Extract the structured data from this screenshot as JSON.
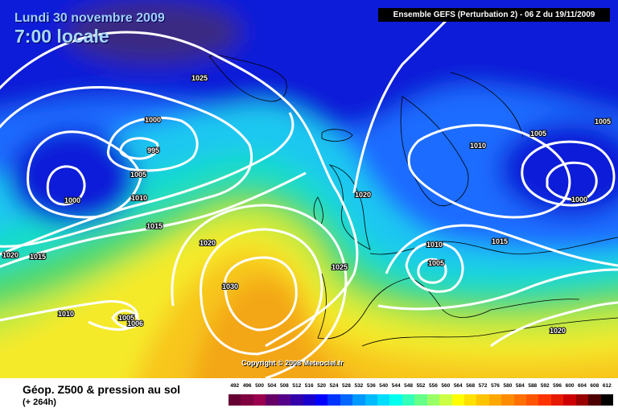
{
  "header": {
    "date_text": "Lundi 30 novembre 2009",
    "time_text": "7:00 locale",
    "model_text": "Ensemble GEFS (Perturbation 2)  -  06 Z du 19/11/2009"
  },
  "copyright": "Copyright © 2008 Meteociel.fr",
  "legend": {
    "title": "Géop. Z500 & pression au sol",
    "subtitle": "(+ 264h)"
  },
  "isobar_labels": [
    "1025",
    "1000",
    "995",
    "1005",
    "1000",
    "1010",
    "1015",
    "1020",
    "1015",
    "1020",
    "1030",
    "1010",
    "1005",
    "1006",
    "1020",
    "1025",
    "1010",
    "1005",
    "1015",
    "1020",
    "1010",
    "1005",
    "1000",
    "1005"
  ],
  "scale": {
    "values": [
      "492",
      "496",
      "500",
      "504",
      "508",
      "512",
      "516",
      "520",
      "524",
      "528",
      "532",
      "536",
      "540",
      "544",
      "548",
      "552",
      "556",
      "560",
      "564",
      "568",
      "572",
      "576",
      "580",
      "584",
      "588",
      "592",
      "596",
      "600",
      "604",
      "608",
      "612"
    ],
    "colors": [
      "#660033",
      "#800040",
      "#99004d",
      "#660066",
      "#550088",
      "#3300aa",
      "#1a00cc",
      "#0000ff",
      "#0033ff",
      "#0066ff",
      "#0099ff",
      "#00bbff",
      "#00ddff",
      "#00ffee",
      "#33ffbb",
      "#66ff88",
      "#99ff66",
      "#ccff44",
      "#ffff00",
      "#ffe000",
      "#ffc400",
      "#ffa800",
      "#ff8c00",
      "#ff7000",
      "#ff5500",
      "#ff3300",
      "#e61a00",
      "#cc0000",
      "#990000",
      "#4d0000",
      "#000000"
    ]
  },
  "colors": {
    "deep_blue": "#0a1fd8",
    "mid_blue": "#1e6cff",
    "light_blue": "#1ec8f0",
    "cyan": "#19dcc8",
    "green": "#4fd86b",
    "yellow_green": "#c6ea3c",
    "yellow": "#f5ea2a",
    "gold": "#f8c61f",
    "orange": "#f3a617",
    "purple_low": "#3b2c82",
    "isobar": "#ffffff",
    "coast": "#000000"
  }
}
